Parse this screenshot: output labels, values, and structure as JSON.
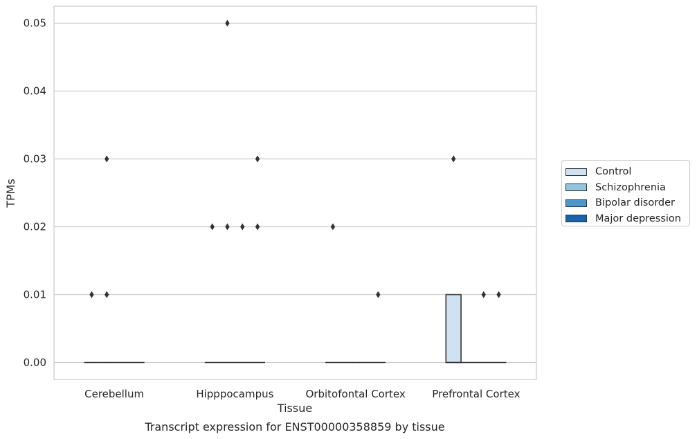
{
  "chart_data": {
    "type": "box",
    "title": "Transcript expression for ENST00000358859 by tissue",
    "xlabel": "Tissue",
    "ylabel": "TPMs",
    "ylim": [
      -0.0025,
      0.0525
    ],
    "yticks": [
      "0.00",
      "0.01",
      "0.02",
      "0.03",
      "0.04",
      "0.05"
    ],
    "grid": true,
    "legend_position": "right",
    "categories": [
      "Cerebellum",
      "Hipppocampus",
      "Orbitofontal Cortex",
      "Prefrontal Cortex"
    ],
    "series": [
      {
        "name": "Control",
        "color": "#d0e1f2",
        "boxes": [
          {
            "q1": 0,
            "median": 0,
            "q3": 0,
            "outliers": [
              0.01
            ]
          },
          {
            "q1": 0,
            "median": 0,
            "q3": 0,
            "outliers": [
              0.02
            ]
          },
          {
            "q1": 0,
            "median": 0,
            "q3": 0,
            "outliers": [
              0.02
            ]
          },
          {
            "q1": 0,
            "median": 0,
            "q3": 0.01,
            "outliers": [
              0.03
            ]
          }
        ]
      },
      {
        "name": "Schizophrenia",
        "color": "#94c4df",
        "boxes": [
          {
            "q1": 0,
            "median": 0,
            "q3": 0,
            "outliers": [
              0.01,
              0.03
            ]
          },
          {
            "q1": 0,
            "median": 0,
            "q3": 0,
            "outliers": [
              0.02,
              0.05
            ]
          },
          {
            "q1": 0,
            "median": 0,
            "q3": 0,
            "outliers": []
          },
          {
            "q1": 0,
            "median": 0,
            "q3": 0,
            "outliers": []
          }
        ]
      },
      {
        "name": "Bipolar disorder",
        "color": "#4a98c9",
        "boxes": [
          {
            "q1": 0,
            "median": 0,
            "q3": 0,
            "outliers": []
          },
          {
            "q1": 0,
            "median": 0,
            "q3": 0,
            "outliers": [
              0.02
            ]
          },
          {
            "q1": 0,
            "median": 0,
            "q3": 0,
            "outliers": []
          },
          {
            "q1": 0,
            "median": 0,
            "q3": 0,
            "outliers": [
              0.01
            ]
          }
        ]
      },
      {
        "name": "Major depression",
        "color": "#1764ab",
        "boxes": [
          {
            "q1": 0,
            "median": 0,
            "q3": 0,
            "outliers": []
          },
          {
            "q1": 0,
            "median": 0,
            "q3": 0,
            "outliers": [
              0.02,
              0.03
            ]
          },
          {
            "q1": 0,
            "median": 0,
            "q3": 0,
            "outliers": [
              0.01
            ]
          },
          {
            "q1": 0,
            "median": 0,
            "q3": 0,
            "outliers": [
              0.01
            ]
          }
        ]
      }
    ]
  }
}
